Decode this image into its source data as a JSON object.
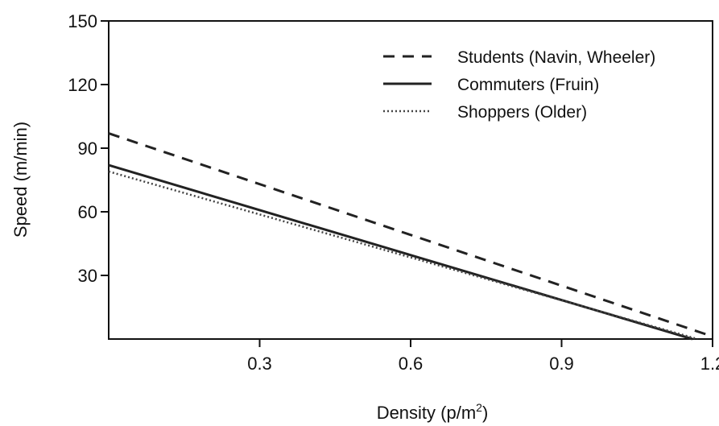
{
  "chart_data": {
    "type": "line",
    "xlabel": "Density (p/m",
    "xlabel_sup": "2",
    "xlabel_end": ")",
    "ylabel": "Speed (m/min)",
    "xlim": [
      0.0,
      1.2
    ],
    "ylim": [
      0,
      150
    ],
    "xticks": [
      "0.3",
      "0.6",
      "0.9",
      "1.2"
    ],
    "yticks": [
      "30",
      "60",
      "90",
      "120",
      "150"
    ],
    "grid": false,
    "legend": "top-right",
    "series": [
      {
        "name": "Students (Navin, Wheeler)",
        "style": "dashed",
        "color": "#222222",
        "x": [
          0.0,
          1.19
        ],
        "y": [
          97,
          2
        ]
      },
      {
        "name": "Commuters (Fruin)",
        "style": "solid",
        "color": "#222222",
        "x": [
          0.0,
          1.16
        ],
        "y": [
          82,
          0
        ]
      },
      {
        "name": "Shoppers (Older)",
        "style": "dotted",
        "color": "#444444",
        "x": [
          0.0,
          1.17
        ],
        "y": [
          79,
          0
        ]
      }
    ]
  }
}
